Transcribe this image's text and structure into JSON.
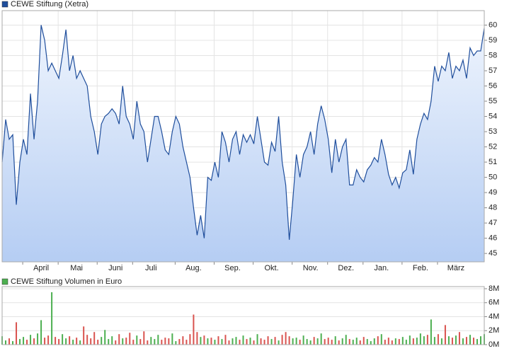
{
  "chart_data": [
    {
      "type": "line",
      "categories": [
        null,
        null,
        null,
        null,
        null,
        null,
        null,
        null,
        null,
        null,
        null,
        "April",
        null,
        null,
        null,
        null,
        null,
        null,
        null,
        null,
        null,
        "Mai",
        null,
        null,
        null,
        null,
        null,
        null,
        null,
        null,
        null,
        null,
        "Juni",
        null,
        null,
        null,
        null,
        null,
        null,
        null,
        null,
        null,
        "Juli",
        null,
        null,
        null,
        null,
        null,
        null,
        null,
        null,
        null,
        null,
        null,
        "Aug.",
        null,
        null,
        null,
        null,
        null,
        null,
        null,
        null,
        null,
        null,
        "Sep.",
        null,
        null,
        null,
        null,
        null,
        null,
        null,
        null,
        null,
        null,
        "Okt.",
        null,
        null,
        null,
        null,
        null,
        null,
        null,
        null,
        null,
        null,
        "Nov.",
        null,
        null,
        null,
        null,
        null,
        null,
        null,
        null,
        null,
        "Dez.",
        null,
        null,
        null,
        null,
        null,
        null,
        null,
        null,
        null,
        "Jan.",
        null,
        null,
        null,
        null,
        null,
        null,
        null,
        null,
        null,
        null,
        "Feb.",
        null,
        null,
        null,
        null,
        null,
        null,
        null,
        null,
        null,
        "März",
        null,
        null,
        null,
        null,
        null,
        null,
        null,
        null
      ],
      "series": [
        {
          "name": "CEWE Stiftung (Xetra)",
          "color": "#1f4e9c",
          "values": [
            51,
            53.8,
            52.5,
            52.8,
            48.2,
            51,
            52.5,
            51.5,
            55.5,
            52.5,
            55,
            60,
            59,
            57,
            57.5,
            57,
            56.5,
            58,
            59.7,
            57,
            58,
            56.5,
            57,
            56.5,
            56,
            54,
            53,
            51.5,
            53.5,
            54,
            54.2,
            54.5,
            54.2,
            53.5,
            56,
            54,
            53.5,
            52.5,
            55,
            53.5,
            53,
            51,
            52.5,
            54,
            54,
            53,
            51.8,
            51.5,
            53,
            54,
            53.5,
            52,
            51,
            50,
            48,
            46.2,
            47.5,
            46,
            50,
            49.8,
            51,
            50,
            53,
            52.3,
            51,
            52.5,
            53,
            51.5,
            52.8,
            52.3,
            52.8,
            52.2,
            54,
            52.5,
            51,
            50.8,
            52.3,
            51.7,
            54,
            51,
            49.5,
            45.9,
            48.5,
            51.5,
            50,
            51.5,
            52,
            53,
            51.5,
            53.5,
            54.7,
            53.8,
            52.5,
            50.3,
            52.5,
            51,
            52,
            52.5,
            49.5,
            49.5,
            50.5,
            50,
            49.7,
            50.5,
            50.8,
            51.3,
            51,
            52.5,
            51.5,
            50.2,
            49.5,
            50,
            49.3,
            50.3,
            50.5,
            51.8,
            50.2,
            52.5,
            53.5,
            54.2,
            53.8,
            55,
            57.3,
            56.3,
            57.3,
            57,
            58.2,
            56.5,
            57.3,
            57,
            57.7,
            56.5,
            58.5,
            58,
            58.3,
            58.3,
            59.8
          ]
        }
      ],
      "ylim": [
        44.45,
        60.95
      ],
      "yticks": [
        45,
        46,
        47,
        48,
        49,
        50,
        51,
        52,
        53,
        54,
        55,
        56,
        57,
        58,
        59,
        60
      ],
      "grid": true
    },
    {
      "type": "bar",
      "series": [
        {
          "name": "CEWE Stiftung Volumen in Euro",
          "color": "#4caf50",
          "values": [
            1.2,
            0.6,
            0.9,
            0.5,
            3.2,
            0.8,
            1.1,
            0.7,
            1.4,
            0.9,
            1.6,
            3.5,
            1.0,
            1.3,
            7.5,
            1.1,
            0.8,
            1.5,
            0.9,
            1.2,
            0.7,
            1.0,
            0.6,
            2.6,
            1.4,
            0.9,
            1.8,
            0.7,
            1.1,
            2.1,
            0.8,
            1.2,
            0.6,
            1.5,
            0.9,
            1.0,
            1.7,
            0.7,
            1.3,
            0.8,
            1.9,
            0.6,
            1.1,
            0.8,
            1.4,
            0.7,
            1.0,
            0.9,
            1.6,
            0.5,
            0.8,
            1.2,
            0.7,
            1.5,
            4.3,
            1.8,
            1.1,
            1.3,
            0.9,
            1.0,
            0.7,
            1.2,
            0.8,
            1.4,
            0.6,
            0.9,
            1.1,
            0.7,
            1.3,
            0.8,
            1.0,
            0.6,
            1.5,
            0.9,
            0.7,
            1.2,
            0.8,
            1.1,
            0.6,
            1.4,
            1.8,
            1.2,
            0.9,
            1.0,
            0.7,
            1.3,
            0.8,
            0.6,
            1.1,
            0.9,
            1.6,
            0.8,
            1.0,
            0.7,
            1.2,
            0.6,
            0.9,
            1.4,
            0.8,
            0.7,
            1.0,
            0.6,
            1.1,
            0.8,
            0.5,
            0.9,
            1.2,
            1.5,
            0.7,
            1.0,
            0.6,
            0.9,
            0.8,
            1.1,
            0.7,
            1.3,
            0.9,
            1.0,
            1.6,
            1.2,
            1.4,
            3.6,
            1.1,
            1.5,
            0.9,
            2.8,
            1.2,
            1.0,
            1.3,
            1.8,
            0.9,
            1.1,
            1.4,
            1.0,
            0.8,
            1.2,
            1.5
          ]
        }
      ],
      "down_color": "#d9534f",
      "ylim": [
        0,
        8.3
      ],
      "yticks": [
        {
          "value": 0,
          "label": "0M"
        },
        {
          "value": 2,
          "label": "2M"
        },
        {
          "value": 4,
          "label": "4M"
        },
        {
          "value": 6,
          "label": "6M"
        },
        {
          "value": 8,
          "label": "8M"
        }
      ],
      "grid": true
    }
  ]
}
